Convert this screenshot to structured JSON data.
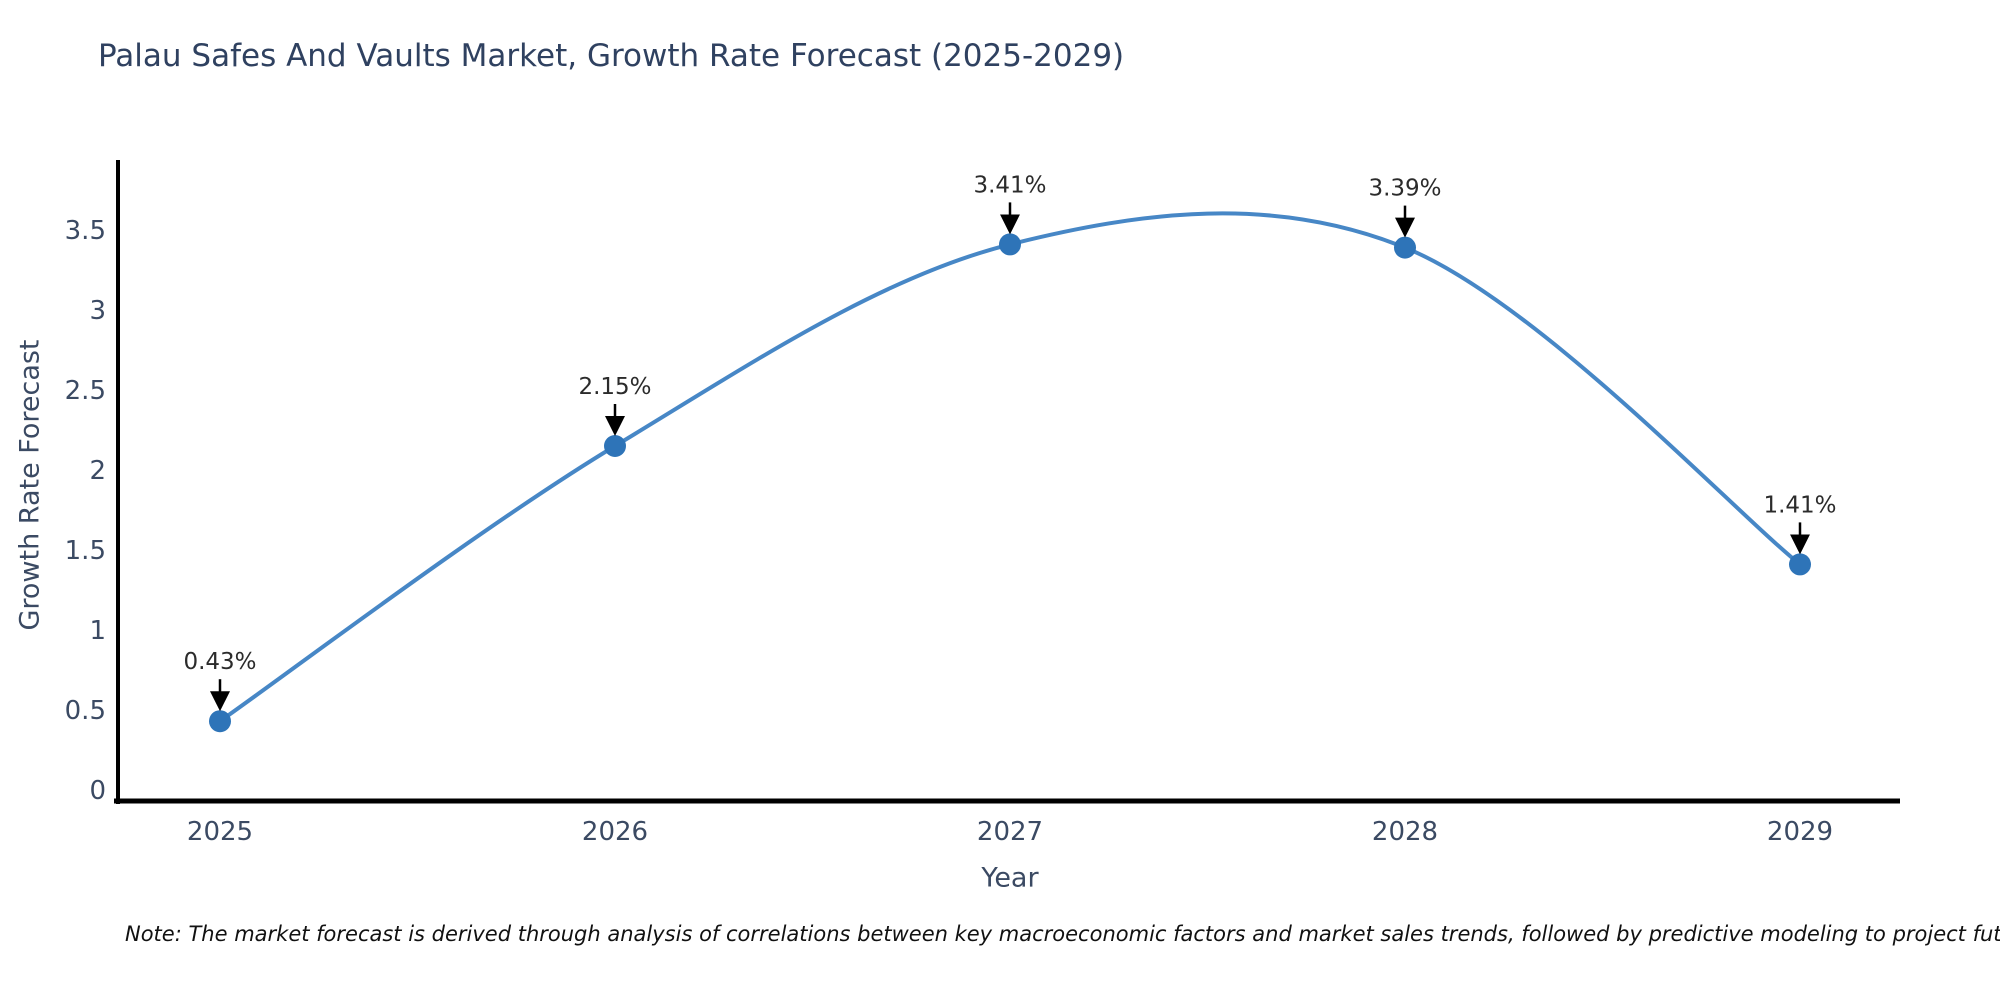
{
  "title": "Palau Safes And Vaults Market, Growth Rate Forecast (2025-2029)",
  "note": "Note: The market forecast is derived through analysis of correlations between key macroeconomic factors and market sales trends, followed by predictive modeling to project future sales",
  "colors": {
    "background": "#ffffff",
    "title_text": "#2f4160",
    "axis_text": "#3b4a63",
    "axis_line": "#000000",
    "line": "#4787c6",
    "marker": "#2e74b8",
    "annotation_text": "#2b2b2b",
    "annotation_arrow": "#000000"
  },
  "chart_data": {
    "type": "line",
    "title": "Palau Safes And Vaults Market, Growth Rate Forecast (2025-2029)",
    "xlabel": "Year",
    "ylabel": "Growth Rate Forecast",
    "categories": [
      "2025",
      "2026",
      "2027",
      "2028",
      "2029"
    ],
    "values": [
      0.43,
      2.15,
      3.41,
      3.39,
      1.41
    ],
    "point_labels": [
      "0.43%",
      "2.15%",
      "3.41%",
      "3.39%",
      "1.41%"
    ],
    "yticks": [
      0,
      0.5,
      1,
      1.5,
      2,
      2.5,
      3,
      3.5
    ],
    "ylim": [
      0,
      3.94
    ],
    "line_shape": "spline",
    "markers": true,
    "grid": false,
    "legend_position": "none",
    "annotations_have_arrows": true
  }
}
